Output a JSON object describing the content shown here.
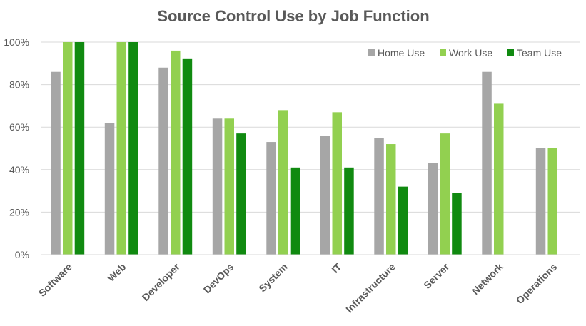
{
  "chart_data": {
    "type": "bar",
    "title": "Source Control Use by Job Function",
    "xlabel": "",
    "ylabel": "",
    "categories": [
      "Software",
      "Web",
      "Developer",
      "DevOps",
      "System",
      "IT",
      "Infrastructure",
      "Server",
      "Network",
      "Operations"
    ],
    "series": [
      {
        "name": "Home Use",
        "color": "#a6a6a6",
        "values": [
          86,
          62,
          88,
          64,
          53,
          56,
          55,
          43,
          86,
          50
        ]
      },
      {
        "name": "Work Use",
        "color": "#92d050",
        "values": [
          100,
          100,
          96,
          64,
          68,
          67,
          52,
          57,
          71,
          50
        ]
      },
      {
        "name": "Team Use",
        "color": "#108a10",
        "values": [
          100,
          100,
          92,
          57,
          41,
          41,
          32,
          29,
          null,
          null
        ]
      }
    ],
    "ylim": [
      0,
      100
    ],
    "yticks": [
      0,
      20,
      40,
      60,
      80,
      100
    ],
    "ytick_labels": [
      "0%",
      "20%",
      "40%",
      "60%",
      "80%",
      "100%"
    ],
    "grid": true,
    "legend_position": "top-right"
  }
}
